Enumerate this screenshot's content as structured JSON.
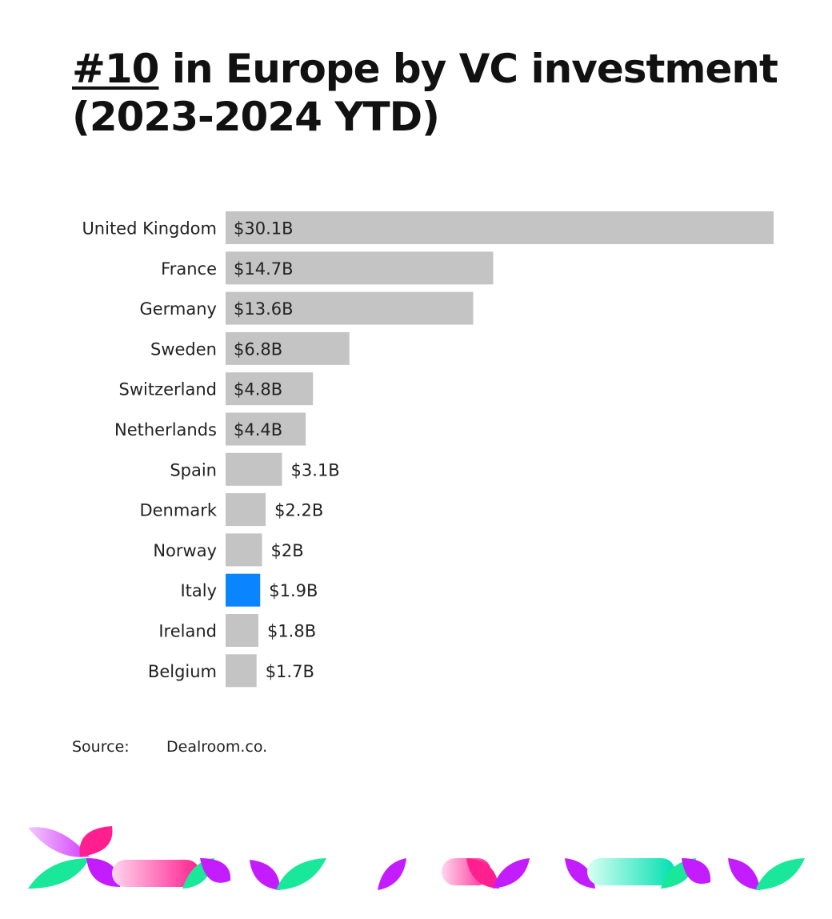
{
  "title": {
    "rank": "#10",
    "rest": " in Europe by VC investment",
    "line2": "(2023-2024 YTD)"
  },
  "source": {
    "label": "Source:",
    "value": "Dealroom.co."
  },
  "colors": {
    "bar": "#c4c4c4",
    "highlight": "#0a84ff"
  },
  "chart_data": {
    "type": "bar",
    "orientation": "horizontal",
    "categories": [
      "United Kingdom",
      "France",
      "Germany",
      "Sweden",
      "Switzerland",
      "Netherlands",
      "Spain",
      "Denmark",
      "Norway",
      "Italy",
      "Ireland",
      "Belgium"
    ],
    "values": [
      30.1,
      14.7,
      13.6,
      6.8,
      4.8,
      4.4,
      3.1,
      2.2,
      2.0,
      1.9,
      1.8,
      1.7
    ],
    "value_labels": [
      "$30.1B",
      "$14.7B",
      "$13.6B",
      "$6.8B",
      "$4.8B",
      "$4.4B",
      "$3.1B",
      "$2.2B",
      "$2B",
      "$1.9B",
      "$1.8B",
      "$1.7B"
    ],
    "highlight": "Italy",
    "title": "#10 in Europe by VC investment (2023-2024 YTD)",
    "xlabel": "",
    "ylabel": "",
    "grid": false,
    "legend": false
  }
}
